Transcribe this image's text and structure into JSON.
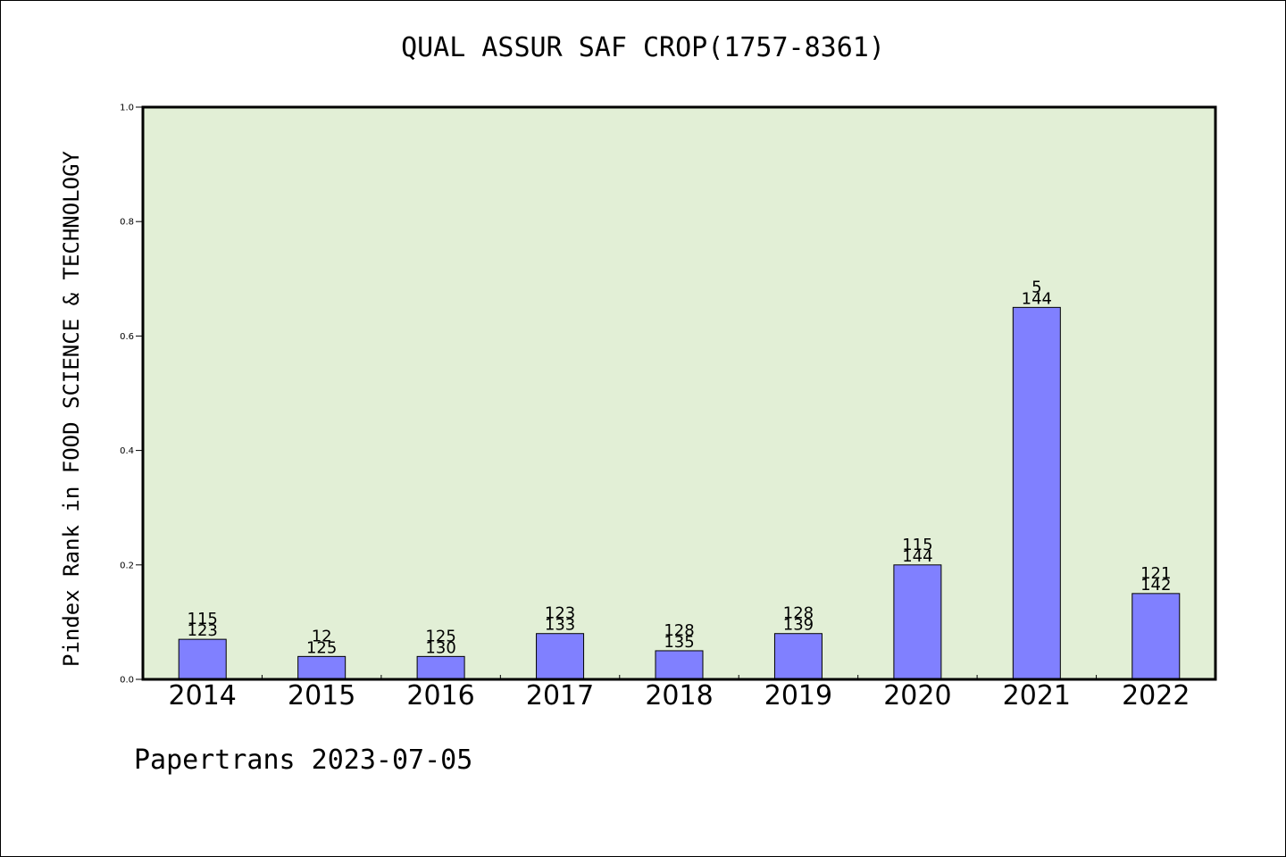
{
  "chart_data": {
    "type": "bar",
    "title": "QUAL ASSUR SAF CROP(1757-8361)",
    "ylabel": "Pindex Rank in FOOD SCIENCE & TECHNOLOGY",
    "xlabel": "",
    "categories": [
      "2014",
      "2015",
      "2016",
      "2017",
      "2018",
      "2019",
      "2020",
      "2021",
      "2022"
    ],
    "values": [
      0.07,
      0.04,
      0.04,
      0.08,
      0.05,
      0.08,
      0.2,
      0.65,
      0.15
    ],
    "labels_top": [
      "115",
      "12",
      "125",
      "123",
      "128",
      "128",
      "115",
      "5",
      "121"
    ],
    "labels_bottom": [
      "123",
      "125",
      "130",
      "133",
      "135",
      "139",
      "144",
      "144",
      "142"
    ],
    "ylim": [
      0,
      1.0
    ],
    "yticks": [
      "0.0",
      "0.2",
      "0.4",
      "0.6",
      "0.8",
      "1.0"
    ],
    "grid": false,
    "colors": {
      "plot_bg": "#e2efd6",
      "bar": "#8080ff",
      "bar_edge": "#000000"
    }
  },
  "footer": "Papertrans 2023-07-05"
}
